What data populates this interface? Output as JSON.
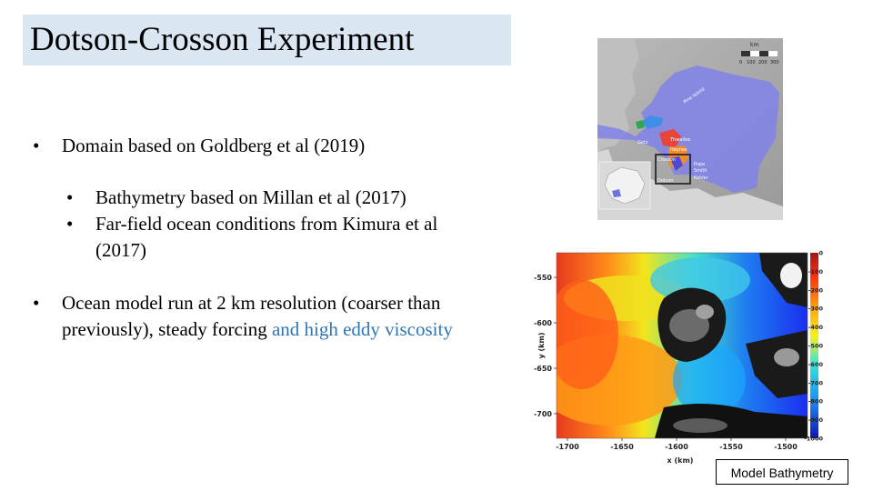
{
  "slide": {
    "title": "Dotson-Crosson Experiment",
    "bullets": [
      {
        "text": "Domain based on Goldberg et al (2019)"
      },
      {
        "text": "Bathymetry based on Millan et al (2017)"
      },
      {
        "text": "Far-field ocean conditions from Kimura et al (2017)"
      },
      {
        "text_plain": "Ocean model run at 2 km resolution (coarser than previously), steady forcing ",
        "text_highlight": "and high eddy viscosity"
      }
    ],
    "bullet_glyph": "•",
    "highlight_color": "#2e75b6"
  },
  "location_map": {
    "scale_label": "km",
    "scale_ticks": [
      "0",
      "100",
      "200",
      "300"
    ],
    "labels": [
      "Pine Island",
      "Thwaites",
      "Haynes",
      "Crosson",
      "Pope",
      "Smith",
      "Kohler",
      "Dotson",
      "Getz"
    ]
  },
  "chart_data": {
    "type": "heatmap",
    "xlabel": "x (km)",
    "ylabel": "y (km)",
    "x_ticks": [
      -1700,
      -1650,
      -1600,
      -1550,
      -1500
    ],
    "y_ticks": [
      -550,
      -600,
      -650,
      -700
    ],
    "xlim": [
      -1710,
      -1480
    ],
    "ylim": [
      -727,
      -523
    ],
    "colorbar_ticks": [
      0,
      -100,
      -200,
      -300,
      -400,
      -500,
      -600,
      -700,
      -800,
      -900,
      -1000
    ],
    "colorbar_range": [
      -1000,
      0
    ]
  },
  "caption": "Model Bathymetry"
}
